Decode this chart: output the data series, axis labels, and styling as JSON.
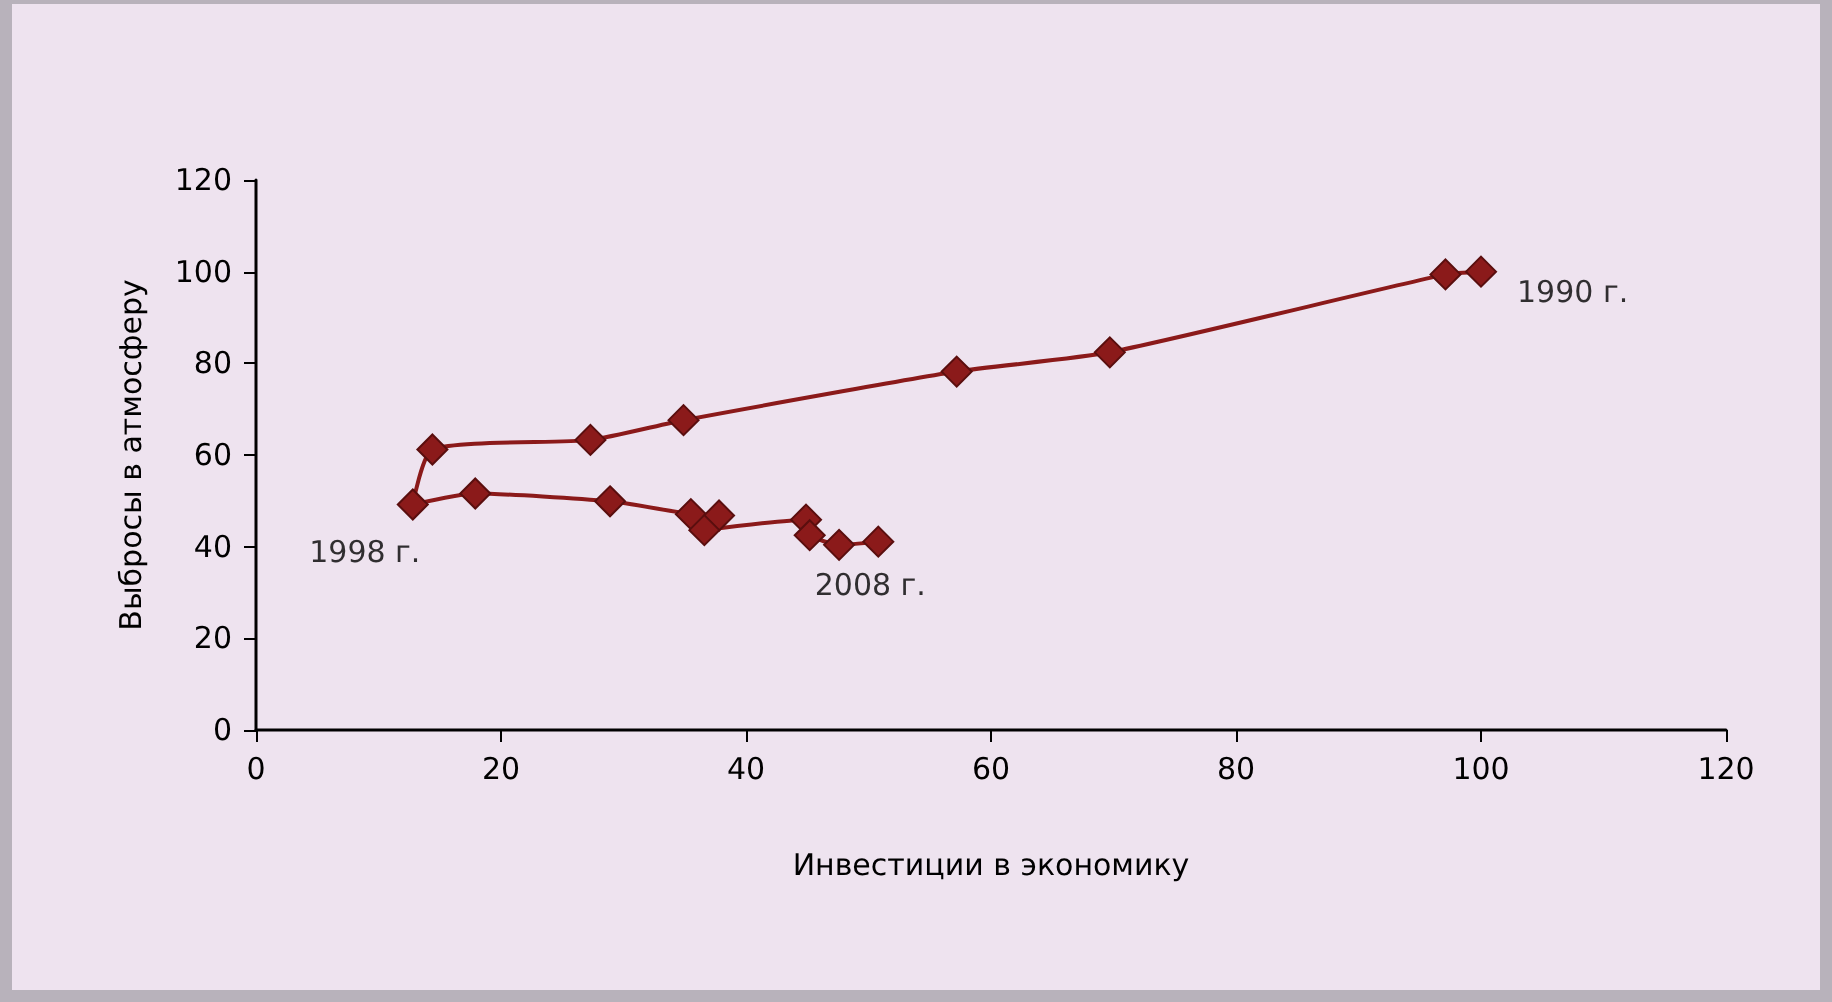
{
  "chart_data": {
    "type": "line",
    "xlabel": "Инвестиции в экономику",
    "ylabel": "Выбросы в атмосферу",
    "x": [
      100,
      97.1,
      69.7,
      57.2,
      34.9,
      27.3,
      14.4,
      12.8,
      17.9,
      28.9,
      35.5,
      37.8,
      36.6,
      44.9,
      45.2,
      47.6,
      50.8
    ],
    "series": [
      {
        "color": "#8b1a1a",
        "values": [
          100,
          99.4,
          82.4,
          78.2,
          67.6,
          63.3,
          61.2,
          49.2,
          51.6,
          49.9,
          47.1,
          46.8,
          43.6,
          45.9,
          42.5,
          40.4,
          41.1
        ]
      }
    ],
    "xlim": [
      0,
      120
    ],
    "xticks": [
      0,
      20,
      40,
      60,
      80,
      100,
      120
    ],
    "ylim": [
      0,
      120
    ],
    "yticks": [
      0,
      20,
      40,
      60,
      80,
      100,
      120
    ],
    "grid": false,
    "marker": "diamond",
    "line_style": "solid",
    "annotations": [
      {
        "text": "1990 г.",
        "x": 100,
        "y": 100
      },
      {
        "text": "1998 г.",
        "x": 12.8,
        "y": 49.2
      },
      {
        "text": "2008 г.",
        "x": 50.8,
        "y": 41.1
      }
    ]
  }
}
